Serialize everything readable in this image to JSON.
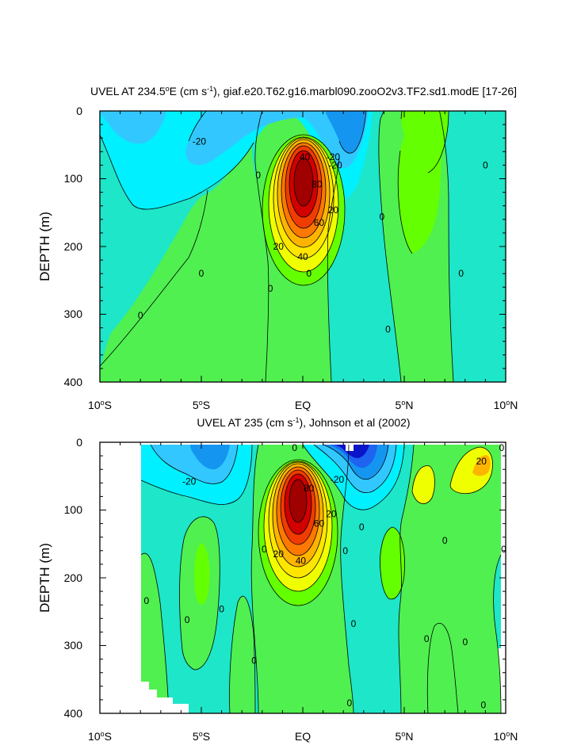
{
  "chart_data": [
    {
      "type": "heatmap",
      "title": "UVEL AT 234.5°E (cm s-1), giaf.e20.T62.g16.marbl090.zooO2v3.TF2.sd1.modE [17-26]",
      "ylabel": "DEPTH (m)",
      "xlabel": "",
      "xlim": [
        -10,
        10
      ],
      "ylim": [
        400,
        0
      ],
      "x_ticks": [
        -10,
        -5,
        0,
        5,
        10
      ],
      "x_tick_labels": [
        "10°S",
        "5°S",
        "EQ",
        "5°N",
        "10°N"
      ],
      "y_ticks": [
        0,
        100,
        200,
        300,
        400
      ],
      "y_tick_labels": [
        "0",
        "100",
        "200",
        "300",
        "400"
      ],
      "contour_interval": 10,
      "contour_labels": [
        {
          "text": "-20",
          "x": -5.1,
          "depth": 45
        },
        {
          "text": "40",
          "x": 0.1,
          "depth": 68
        },
        {
          "text": "-20",
          "x": 1.5,
          "depth": 68
        },
        {
          "text": "0",
          "x": -2.2,
          "depth": 95
        },
        {
          "text": "-20",
          "x": 1.6,
          "depth": 80
        },
        {
          "text": "80",
          "x": 0.7,
          "depth": 108
        },
        {
          "text": "0",
          "x": 9.0,
          "depth": 80
        },
        {
          "text": "20",
          "x": 1.5,
          "depth": 146
        },
        {
          "text": "0",
          "x": 3.9,
          "depth": 156
        },
        {
          "text": "60",
          "x": 0.8,
          "depth": 165
        },
        {
          "text": "20",
          "x": -1.2,
          "depth": 200
        },
        {
          "text": "40",
          "x": 0.0,
          "depth": 215
        },
        {
          "text": "0",
          "x": -5.0,
          "depth": 240
        },
        {
          "text": "0",
          "x": 0.3,
          "depth": 240
        },
        {
          "text": "0",
          "x": 7.8,
          "depth": 240
        },
        {
          "text": "0",
          "x": -1.6,
          "depth": 262
        },
        {
          "text": "0",
          "x": -8.0,
          "depth": 302
        },
        {
          "text": "0",
          "x": 4.2,
          "depth": 322
        }
      ]
    },
    {
      "type": "heatmap",
      "title": "UVEL AT 235 (cm s-1), Johnson et al (2002)",
      "ylabel": "DEPTH (m)",
      "xlabel": "",
      "xlim": [
        -10,
        10
      ],
      "ylim": [
        400,
        0
      ],
      "x_ticks": [
        -10,
        -5,
        0,
        5,
        10
      ],
      "x_tick_labels": [
        "10°S",
        "5°S",
        "EQ",
        "5°N",
        "10°N"
      ],
      "y_ticks": [
        0,
        100,
        200,
        300,
        400
      ],
      "y_tick_labels": [
        "0",
        "100",
        "200",
        "300",
        "400"
      ],
      "contour_interval": 10,
      "contour_labels": [
        {
          "text": "0",
          "x": -0.4,
          "depth": 8
        },
        {
          "text": "0",
          "x": 9.8,
          "depth": 8
        },
        {
          "text": "20",
          "x": 8.8,
          "depth": 28
        },
        {
          "text": "-20",
          "x": -5.6,
          "depth": 58
        },
        {
          "text": "80",
          "x": 0.3,
          "depth": 68
        },
        {
          "text": "-20",
          "x": 1.7,
          "depth": 55
        },
        {
          "text": "60",
          "x": 0.8,
          "depth": 120
        },
        {
          "text": "20",
          "x": 1.4,
          "depth": 106
        },
        {
          "text": "0",
          "x": 2.9,
          "depth": 125
        },
        {
          "text": "0",
          "x": 7.0,
          "depth": 145
        },
        {
          "text": "0",
          "x": -1.9,
          "depth": 158
        },
        {
          "text": "0",
          "x": 9.9,
          "depth": 158
        },
        {
          "text": "0",
          "x": 2.1,
          "depth": 160
        },
        {
          "text": "20",
          "x": -1.2,
          "depth": 165
        },
        {
          "text": "40",
          "x": -0.1,
          "depth": 175
        },
        {
          "text": "0",
          "x": -7.7,
          "depth": 234
        },
        {
          "text": "0",
          "x": -5.7,
          "depth": 262
        },
        {
          "text": "0",
          "x": -4.0,
          "depth": 246
        },
        {
          "text": "0",
          "x": 2.5,
          "depth": 268
        },
        {
          "text": "0",
          "x": 6.1,
          "depth": 290
        },
        {
          "text": "0",
          "x": 8.0,
          "depth": 295
        },
        {
          "text": "0",
          "x": -2.4,
          "depth": 322
        },
        {
          "text": "0",
          "x": 2.3,
          "depth": 385
        },
        {
          "text": "0",
          "x": 8.9,
          "depth": 388
        }
      ]
    }
  ],
  "colors": {
    "level_fills": [
      "#0a14c8",
      "#1e64f0",
      "#1496f0",
      "#32c8ff",
      "#00f0ff",
      "#1ee6c8",
      "#50f050",
      "#64ff00",
      "#f0ff00",
      "#ffe600",
      "#ffb400",
      "#ff7800",
      "#f03c00",
      "#d20000",
      "#a00000"
    ],
    "contour_line": "#000000",
    "frame": "#000000",
    "background": "#ffffff"
  }
}
